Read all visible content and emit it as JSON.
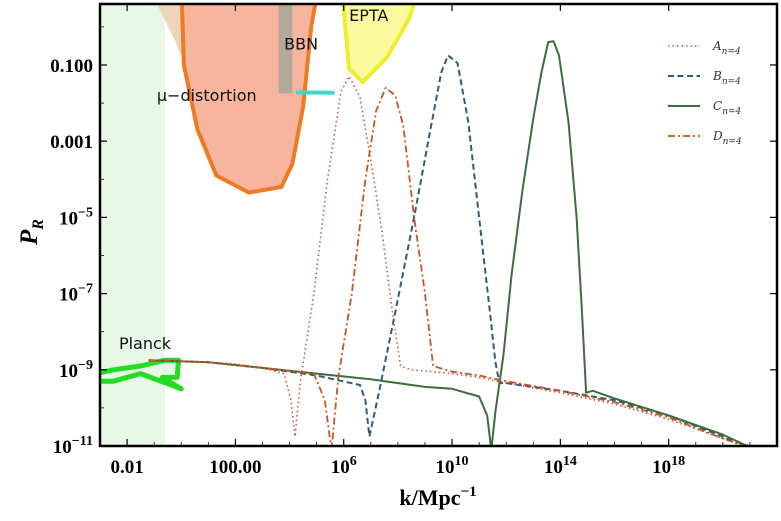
{
  "chart_data": {
    "type": "line",
    "title": "",
    "xlabel": "k/Mpc",
    "xlabel_exponent": "−1",
    "ylabel": "P",
    "ylabel_subscript": "R",
    "x_scale": "log10",
    "y_scale": "log10",
    "xlim_log10": [
      -3,
      22
    ],
    "ylim_log10": [
      -11,
      0.6
    ],
    "x_ticks": [
      {
        "log10": -2,
        "base": "0.01",
        "exp": ""
      },
      {
        "log10": 2,
        "base": "100.00",
        "exp": ""
      },
      {
        "log10": 6,
        "base": "10",
        "exp": "6"
      },
      {
        "log10": 10,
        "base": "10",
        "exp": "10"
      },
      {
        "log10": 14,
        "base": "10",
        "exp": "14"
      },
      {
        "log10": 18,
        "base": "10",
        "exp": "18"
      }
    ],
    "y_ticks": [
      {
        "log10": -1,
        "base": "0.100",
        "exp": ""
      },
      {
        "log10": -3,
        "base": "0.001",
        "exp": ""
      },
      {
        "log10": -5,
        "base": "10",
        "exp": "−5"
      },
      {
        "log10": -7,
        "base": "10",
        "exp": "−7"
      },
      {
        "log10": -9,
        "base": "10",
        "exp": "−9"
      },
      {
        "log10": -11,
        "base": "10",
        "exp": "−11"
      }
    ],
    "legend_position": "top-right",
    "regions": [
      {
        "name": "Planck",
        "label": "Planck",
        "fill": "#e7f8e9",
        "stroke": "#22dd22",
        "points": [
          [
            -3.2,
            -9.1
          ],
          [
            -2.5,
            -9.0
          ],
          [
            -1.5,
            -8.9
          ],
          [
            -0.6,
            -8.75
          ],
          [
            -0.1,
            -8.75
          ],
          [
            -0.15,
            -9.2
          ],
          [
            -0.7,
            -9.2
          ],
          [
            0,
            -9.5
          ],
          [
            -1.5,
            -9.1
          ],
          [
            -2.5,
            -9.3
          ],
          [
            -3.2,
            -9.3
          ]
        ]
      },
      {
        "name": "mu-distortion",
        "label": "μ−distortion",
        "fill": "#f7b59d",
        "stroke": "#ee7a24",
        "points": [
          [
            0,
            1.2
          ],
          [
            0.1,
            -1.0
          ],
          [
            0.6,
            -2.7
          ],
          [
            1.3,
            -3.9
          ],
          [
            2.5,
            -4.35
          ],
          [
            3.7,
            -4.2
          ],
          [
            4.1,
            -3.6
          ],
          [
            4.5,
            -2.1
          ],
          [
            4.8,
            0.0
          ],
          [
            5.1,
            1.2
          ]
        ]
      },
      {
        "name": "mu-distortion-light",
        "label": "",
        "fill": "#edd4ba",
        "stroke": "none",
        "points": [
          [
            -1.2,
            1.2
          ],
          [
            -0.9,
            0.6
          ],
          [
            -0.2,
            -0.4
          ],
          [
            0,
            -0.8
          ],
          [
            0.1,
            1.2
          ]
        ]
      },
      {
        "name": "BBN",
        "label": "BBN",
        "fill": "none",
        "stroke": "#44d4d0",
        "points": [
          [
            4.3,
            -1.72
          ],
          [
            5.6,
            -1.73
          ]
        ]
      },
      {
        "name": "EPTA",
        "label": "EPTA",
        "fill": "#fbfa9e",
        "stroke": "#eeee30",
        "points": [
          [
            5.9,
            1.2
          ],
          [
            6.2,
            -1.1
          ],
          [
            6.7,
            -1.45
          ],
          [
            7.6,
            -0.8
          ],
          [
            8.4,
            0.2
          ],
          [
            8.9,
            1.2
          ]
        ]
      },
      {
        "name": "gray-band",
        "label": "",
        "fill": "#b2a99b",
        "stroke": "none",
        "points": [
          [
            3.6,
            1.2
          ],
          [
            4.1,
            1.2
          ],
          [
            4.1,
            -1.75
          ],
          [
            3.6,
            -1.75
          ]
        ]
      }
    ],
    "series": [
      {
        "name": "A",
        "label_main": "A",
        "label_sub": "n=4",
        "color": "#c1584b",
        "dash": "1.5,3",
        "width": 1.6,
        "points": [
          [
            -1.2,
            -8.75
          ],
          [
            0,
            -8.77
          ],
          [
            1,
            -8.8
          ],
          [
            2,
            -8.85
          ],
          [
            3,
            -8.95
          ],
          [
            3.8,
            -9.1
          ],
          [
            4.05,
            -9.8
          ],
          [
            4.2,
            -10.75
          ],
          [
            4.4,
            -9.3
          ],
          [
            4.9,
            -7.0
          ],
          [
            5.4,
            -4.0
          ],
          [
            5.9,
            -1.7
          ],
          [
            6.2,
            -1.3
          ],
          [
            6.6,
            -1.85
          ],
          [
            7.0,
            -3.5
          ],
          [
            7.4,
            -5.3
          ],
          [
            7.8,
            -7.5
          ],
          [
            8.1,
            -8.9
          ],
          [
            8.5,
            -9.0
          ],
          [
            10,
            -9.1
          ],
          [
            11,
            -9.2
          ],
          [
            12,
            -9.35
          ],
          [
            14,
            -9.6
          ],
          [
            16,
            -9.9
          ],
          [
            18,
            -10.3
          ],
          [
            20,
            -10.8
          ],
          [
            21,
            -11.05
          ]
        ]
      },
      {
        "name": "B",
        "label_main": "B",
        "label_sub": "n=4",
        "color": "#2e5b7e",
        "dash": "6,3.5",
        "width": 2,
        "points": [
          [
            -1.2,
            -8.75
          ],
          [
            1,
            -8.8
          ],
          [
            3,
            -8.95
          ],
          [
            5,
            -9.15
          ],
          [
            6.6,
            -9.4
          ],
          [
            6.8,
            -9.8
          ],
          [
            6.95,
            -10.75
          ],
          [
            7.3,
            -9.6
          ],
          [
            7.9,
            -7.5
          ],
          [
            8.6,
            -5.0
          ],
          [
            9.2,
            -2.7
          ],
          [
            9.6,
            -1.2
          ],
          [
            9.85,
            -0.75
          ],
          [
            10.2,
            -0.95
          ],
          [
            10.6,
            -2.5
          ],
          [
            11.0,
            -5.0
          ],
          [
            11.4,
            -7.5
          ],
          [
            11.6,
            -8.8
          ],
          [
            11.75,
            -9.35
          ],
          [
            12,
            -9.35
          ],
          [
            14,
            -9.55
          ],
          [
            16,
            -9.8
          ],
          [
            18,
            -10.2
          ],
          [
            20,
            -10.75
          ],
          [
            21.3,
            -11.1
          ]
        ]
      },
      {
        "name": "C",
        "label_main": "C",
        "label_sub": "n=4",
        "color": "#3c6e3b",
        "dash": "",
        "width": 2,
        "points": [
          [
            -1.2,
            -8.75
          ],
          [
            1,
            -8.8
          ],
          [
            3,
            -8.95
          ],
          [
            5,
            -9.1
          ],
          [
            7,
            -9.25
          ],
          [
            9,
            -9.45
          ],
          [
            10,
            -9.5
          ],
          [
            11,
            -9.7
          ],
          [
            11.3,
            -10.2
          ],
          [
            11.45,
            -11.1
          ],
          [
            11.6,
            -10.1
          ],
          [
            11.9,
            -8.6
          ],
          [
            12.2,
            -6.5
          ],
          [
            12.6,
            -4.3
          ],
          [
            13,
            -2.4
          ],
          [
            13.3,
            -1.2
          ],
          [
            13.55,
            -0.4
          ],
          [
            13.75,
            -0.38
          ],
          [
            13.95,
            -0.75
          ],
          [
            14.3,
            -2.5
          ],
          [
            14.6,
            -5.0
          ],
          [
            14.8,
            -7.5
          ],
          [
            14.95,
            -9.6
          ],
          [
            15.2,
            -9.55
          ],
          [
            16,
            -9.75
          ],
          [
            18,
            -10.2
          ],
          [
            20,
            -10.7
          ],
          [
            21.2,
            -11.1
          ]
        ]
      },
      {
        "name": "D",
        "label_main": "D",
        "label_sub": "n=4",
        "color": "#c8541f",
        "dash": "7,3,2,3",
        "width": 1.8,
        "points": [
          [
            -1.2,
            -8.75
          ],
          [
            1,
            -8.8
          ],
          [
            3,
            -8.95
          ],
          [
            4.9,
            -9.1
          ],
          [
            5.3,
            -9.8
          ],
          [
            5.55,
            -11.1
          ],
          [
            5.8,
            -9.2
          ],
          [
            6.3,
            -7.0
          ],
          [
            6.8,
            -4.0
          ],
          [
            7.2,
            -2.2
          ],
          [
            7.55,
            -1.6
          ],
          [
            7.9,
            -1.8
          ],
          [
            8.2,
            -2.6
          ],
          [
            8.6,
            -5.0
          ],
          [
            9.0,
            -7.0
          ],
          [
            9.3,
            -8.9
          ],
          [
            10,
            -9.05
          ],
          [
            11,
            -9.15
          ],
          [
            12,
            -9.3
          ],
          [
            14,
            -9.55
          ],
          [
            16,
            -9.85
          ],
          [
            18,
            -10.25
          ],
          [
            20,
            -10.8
          ],
          [
            21,
            -11.05
          ]
        ]
      }
    ]
  }
}
